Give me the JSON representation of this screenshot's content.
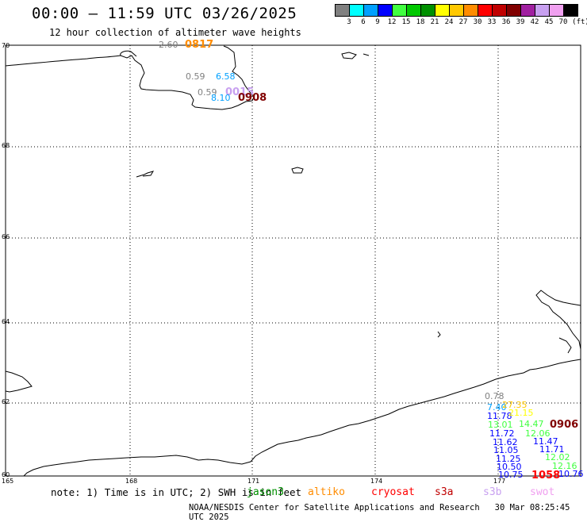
{
  "header": {
    "title": "00:00 – 11:59 UTC 03/26/2025",
    "subtitle": "12 hour collection of altimeter wave heights"
  },
  "legend": {
    "unit": "(ft)",
    "items": [
      {
        "label": "3",
        "color": "#808080"
      },
      {
        "label": "6",
        "color": "#00ffff"
      },
      {
        "label": "9",
        "color": "#00a0ff"
      },
      {
        "label": "12",
        "color": "#0000ff"
      },
      {
        "label": "15",
        "color": "#40ff40"
      },
      {
        "label": "18",
        "color": "#00c800"
      },
      {
        "label": "21",
        "color": "#009000"
      },
      {
        "label": "24",
        "color": "#ffff00"
      },
      {
        "label": "27",
        "color": "#ffc800"
      },
      {
        "label": "30",
        "color": "#ff8c00"
      },
      {
        "label": "33",
        "color": "#ff0000"
      },
      {
        "label": "36",
        "color": "#c00000"
      },
      {
        "label": "39",
        "color": "#800000"
      },
      {
        "label": "42",
        "color": "#a020a0"
      },
      {
        "label": "45",
        "color": "#c8a0f0"
      },
      {
        "label": "70",
        "color": "#f0a0f0"
      },
      {
        "label": "",
        "color": "#000000"
      }
    ]
  },
  "axes": {
    "lat_labels": [
      "70",
      "68",
      "66",
      "64",
      "62",
      "60"
    ],
    "lon_labels": [
      "165",
      "168",
      "171",
      "174",
      "177"
    ]
  },
  "observations": [
    {
      "text": "2.60",
      "color": "#808080"
    },
    {
      "text": "0817",
      "color": "#ff8c00"
    },
    {
      "text": "0.59",
      "color": "#808080"
    },
    {
      "text": "6.58",
      "color": "#00a0ff"
    },
    {
      "text": "0.59",
      "color": "#808080"
    },
    {
      "text": "0015",
      "color": "#c8a0f0"
    },
    {
      "text": "8.10",
      "color": "#00a0ff"
    },
    {
      "text": "0908",
      "color": "#800000"
    },
    {
      "text": "0.78",
      "color": "#808080"
    },
    {
      "text": "7.40",
      "color": "#00a0ff"
    },
    {
      "text": "27.35",
      "color": "#ffc800"
    },
    {
      "text": "11.78",
      "color": "#0000ff"
    },
    {
      "text": "21.15",
      "color": "#ffff00"
    },
    {
      "text": "13.01",
      "color": "#40ff40"
    },
    {
      "text": "14.47",
      "color": "#40ff40"
    },
    {
      "text": "0906",
      "color": "#800000"
    },
    {
      "text": "11.72",
      "color": "#0000ff"
    },
    {
      "text": "12.06",
      "color": "#40ff40"
    },
    {
      "text": "11.62",
      "color": "#0000ff"
    },
    {
      "text": "11.47",
      "color": "#0000ff"
    },
    {
      "text": "11.05",
      "color": "#0000ff"
    },
    {
      "text": "11.71",
      "color": "#0000ff"
    },
    {
      "text": "12.02",
      "color": "#40ff40"
    },
    {
      "text": "11.25",
      "color": "#0000ff"
    },
    {
      "text": "12.16",
      "color": "#40ff40"
    },
    {
      "text": "10.50",
      "color": "#0000ff"
    },
    {
      "text": "10.75",
      "color": "#0000ff"
    },
    {
      "text": "1058",
      "color": "#ff0000"
    },
    {
      "text": "10.76",
      "color": "#0000ff"
    }
  ],
  "footer": {
    "note": "note: 1) Time is in UTC; 2) SWH is in feet",
    "satellites": [
      {
        "name": "jason3",
        "color": "#009000"
      },
      {
        "name": "altiko",
        "color": "#ff8c00"
      },
      {
        "name": "cryosat",
        "color": "#ff0000"
      },
      {
        "name": "s3a",
        "color": "#c00000"
      },
      {
        "name": "s3b",
        "color": "#c8a0f0"
      },
      {
        "name": "swot",
        "color": "#f0a0f0"
      }
    ],
    "credit": "NOAA/NESDIS Center for Satellite Applications and Research",
    "timestamp": "30 Mar 08:25:45 UTC 2025"
  }
}
